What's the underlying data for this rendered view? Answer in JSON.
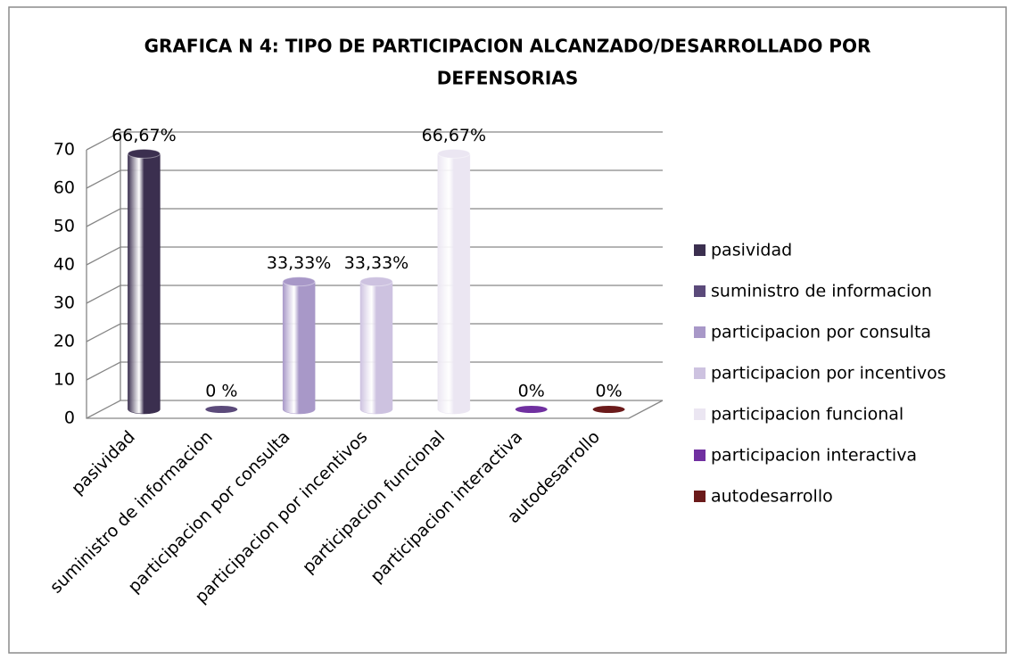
{
  "chart_data": {
    "type": "bar",
    "title": [
      "GRAFICA N 4: TIPO DE PARTICIPACION ALCANZADO/DESARROLLADO POR",
      "DEFENSORIAS"
    ],
    "categories": [
      "pasividad",
      "suministro de informacion",
      "participacion por consulta",
      "participacion por incentivos",
      "participacion funcional",
      "participacion interactiva",
      "autodesarrollo"
    ],
    "values": [
      66.67,
      0,
      33.33,
      33.33,
      66.67,
      0,
      0
    ],
    "value_labels": [
      "66,67%",
      "0 %",
      "33,33%",
      "33,33%",
      "66,67%",
      "0%",
      "0%"
    ],
    "colors": [
      "#3b2f4f",
      "#5b4a7a",
      "#a898c8",
      "#cdc2e0",
      "#ebe6f2",
      "#7030a0",
      "#6b1a1a"
    ],
    "ylim": [
      0,
      70
    ],
    "yticks": [
      0,
      10,
      20,
      30,
      40,
      50,
      60,
      70
    ],
    "grid": true,
    "legend": "right"
  }
}
